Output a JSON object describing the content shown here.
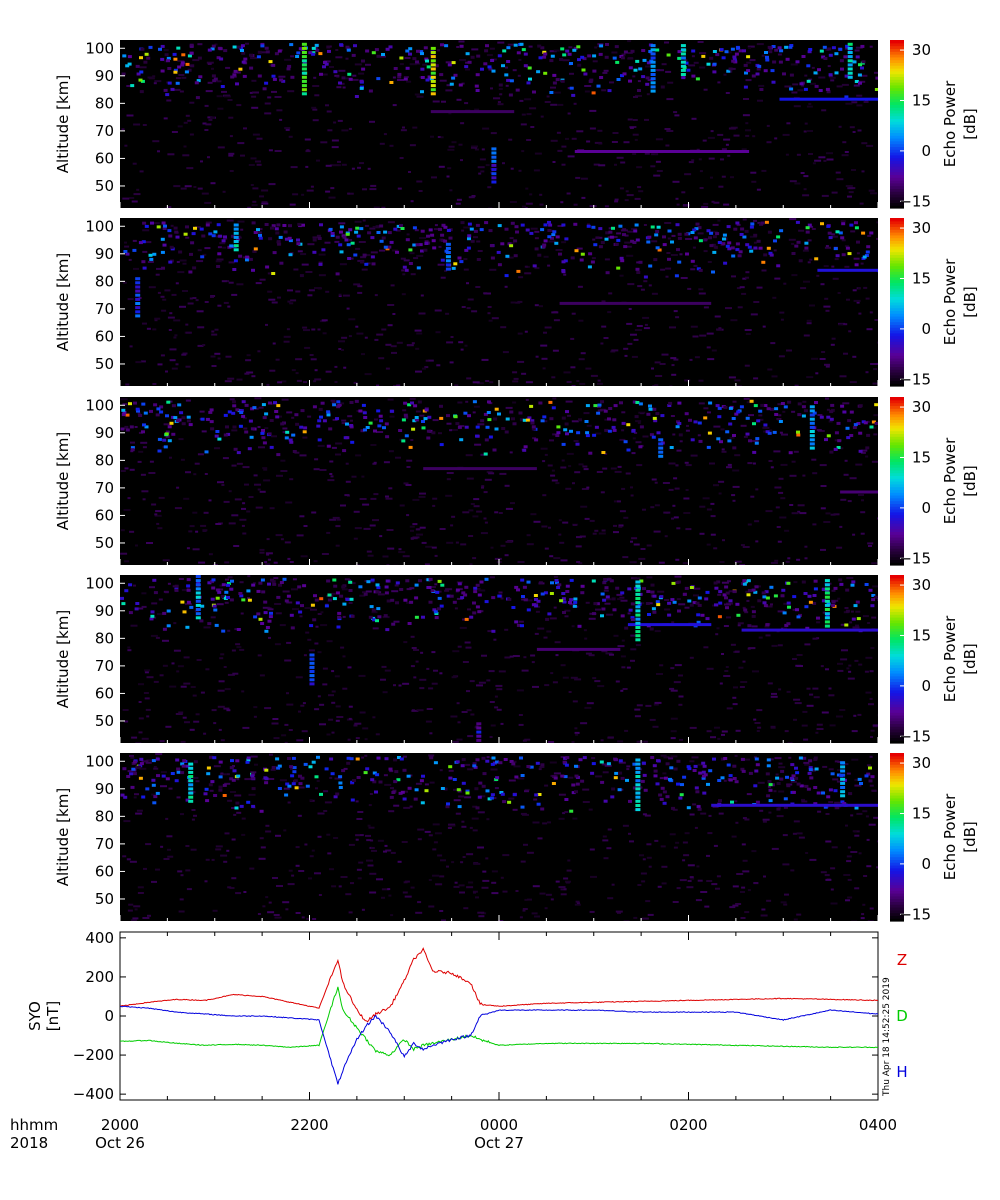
{
  "chart_data": [
    {
      "type": "heatmap",
      "panel": 1,
      "ylabel": "Altitude [km]",
      "ylim": [
        42,
        103
      ],
      "yticks": [
        50,
        60,
        70,
        80,
        90,
        100
      ],
      "colorbar": {
        "label": "Echo Power [dB]",
        "ticks": [
          -15,
          0,
          15,
          30
        ],
        "range": [
          -17,
          33
        ]
      },
      "features": [
        {
          "t": 0.24,
          "alt": [
            84,
            102
          ],
          "db": 20
        },
        {
          "t": 0.41,
          "alt": [
            84,
            101
          ],
          "db": 26
        },
        {
          "t": 0.49,
          "alt": [
            52,
            64
          ],
          "db": 4
        },
        {
          "t": 0.7,
          "alt": [
            85,
            102
          ],
          "db": 8
        },
        {
          "t": 0.74,
          "alt": [
            91,
            102
          ],
          "db": 12
        },
        {
          "t": 0.96,
          "alt": [
            90,
            102
          ],
          "db": 15
        }
      ],
      "layers": [
        {
          "t": [
            0.6,
            0.83
          ],
          "alt": 62.5,
          "db": -8
        },
        {
          "t": [
            0.87,
            1.12
          ],
          "alt": 81.5,
          "db": -2
        },
        {
          "t": [
            0.41,
            0.52
          ],
          "alt": 77,
          "db": -11
        }
      ]
    },
    {
      "type": "heatmap",
      "panel": 2,
      "ylabel": "Altitude [km]",
      "ylim": [
        42,
        103
      ],
      "yticks": [
        50,
        60,
        70,
        80,
        90,
        100
      ],
      "colorbar": {
        "label": "Echo Power [dB]",
        "ticks": [
          -15,
          0,
          15,
          30
        ],
        "range": [
          -17,
          33
        ]
      },
      "features": [
        {
          "t": 0.02,
          "alt": [
            68,
            82
          ],
          "db": 4
        },
        {
          "t": 0.15,
          "alt": [
            92,
            102
          ],
          "db": 14
        },
        {
          "t": 0.43,
          "alt": [
            85,
            95
          ],
          "db": 6
        }
      ],
      "layers": [
        {
          "t": [
            0.58,
            0.78
          ],
          "alt": 72,
          "db": -11
        },
        {
          "t": [
            0.92,
            1.02
          ],
          "alt": 84,
          "db": -3
        }
      ]
    },
    {
      "type": "heatmap",
      "panel": 3,
      "ylabel": "Altitude [km]",
      "ylim": [
        42,
        103
      ],
      "yticks": [
        50,
        60,
        70,
        80,
        90,
        100
      ],
      "colorbar": {
        "label": "Echo Power [dB]",
        "ticks": [
          -15,
          0,
          15,
          30
        ],
        "range": [
          -17,
          33
        ]
      },
      "features": [
        {
          "t": 0.71,
          "alt": [
            82,
            88
          ],
          "db": 8
        },
        {
          "t": 0.91,
          "alt": [
            85,
            100
          ],
          "db": 10
        }
      ],
      "layers": [
        {
          "t": [
            0.95,
            1.15
          ],
          "alt": 68.5,
          "db": -10
        },
        {
          "t": [
            0.4,
            0.55
          ],
          "alt": 77,
          "db": -11
        }
      ]
    },
    {
      "type": "heatmap",
      "panel": 4,
      "ylabel": "Altitude [km]",
      "ylim": [
        42,
        103
      ],
      "yticks": [
        50,
        60,
        70,
        80,
        90,
        100
      ],
      "colorbar": {
        "label": "Echo Power [dB]",
        "ticks": [
          -15,
          0,
          15,
          30
        ],
        "range": [
          -17,
          33
        ]
      },
      "features": [
        {
          "t": 0.1,
          "alt": [
            88,
            103
          ],
          "db": 10
        },
        {
          "t": 0.25,
          "alt": [
            64,
            75
          ],
          "db": 2
        },
        {
          "t": 0.47,
          "alt": [
            42,
            50
          ],
          "db": 0
        },
        {
          "t": 0.68,
          "alt": [
            80,
            101
          ],
          "db": 14
        },
        {
          "t": 0.93,
          "alt": [
            85,
            102
          ],
          "db": 16
        }
      ],
      "layers": [
        {
          "t": [
            0.67,
            0.78
          ],
          "alt": 85,
          "db": -3
        },
        {
          "t": [
            0.82,
            1.08
          ],
          "alt": 83,
          "db": -4
        },
        {
          "t": [
            0.55,
            0.66
          ],
          "alt": 76,
          "db": -10
        }
      ]
    },
    {
      "type": "heatmap",
      "panel": 5,
      "ylabel": "Altitude [km]",
      "ylim": [
        42,
        103
      ],
      "yticks": [
        50,
        60,
        70,
        80,
        90,
        100
      ],
      "colorbar": {
        "label": "Echo Power [dB]",
        "ticks": [
          -15,
          0,
          15,
          30
        ],
        "range": [
          -17,
          33
        ]
      },
      "features": [
        {
          "t": 0.09,
          "alt": [
            86,
            100
          ],
          "db": 14
        },
        {
          "t": 0.68,
          "alt": [
            83,
            101
          ],
          "db": 12
        },
        {
          "t": 0.95,
          "alt": [
            88,
            100
          ],
          "db": 10
        }
      ],
      "layers": [
        {
          "t": [
            0.78,
            1.1
          ],
          "alt": 84,
          "db": -4
        }
      ]
    },
    {
      "type": "line",
      "panel": 6,
      "ylabel": "SYO [nT]",
      "ylim": [
        -430,
        430
      ],
      "yticks": [
        -400,
        -200,
        0,
        200,
        400
      ],
      "x_hours": [
        0,
        8
      ],
      "series": [
        {
          "name": "Z",
          "color": "#dd0000",
          "x": [
            0,
            0.3,
            0.6,
            0.9,
            1.2,
            1.5,
            1.8,
            2.1,
            2.3,
            2.35,
            2.5,
            2.6,
            2.7,
            2.85,
            3,
            3.1,
            3.2,
            3.3,
            3.5,
            3.7,
            3.8,
            4.0,
            4.5,
            5,
            5.5,
            6,
            6.5,
            7,
            7.5,
            8
          ],
          "y": [
            50,
            70,
            85,
            80,
            110,
            100,
            70,
            40,
            290,
            170,
            30,
            -30,
            10,
            45,
            180,
            290,
            340,
            230,
            220,
            170,
            60,
            50,
            65,
            70,
            75,
            80,
            85,
            90,
            85,
            80
          ]
        },
        {
          "name": "D",
          "color": "#00cc00",
          "x": [
            0,
            0.3,
            0.6,
            0.9,
            1.2,
            1.5,
            1.8,
            2.1,
            2.3,
            2.35,
            2.5,
            2.6,
            2.7,
            2.85,
            3,
            3.1,
            3.2,
            3.3,
            3.5,
            3.7,
            3.8,
            4.0,
            4.5,
            5,
            5.5,
            6,
            6.5,
            7,
            7.5,
            8
          ],
          "y": [
            -130,
            -125,
            -140,
            -150,
            -145,
            -150,
            -160,
            -150,
            150,
            30,
            -60,
            -120,
            -180,
            -200,
            -120,
            -170,
            -150,
            -140,
            -120,
            -100,
            -120,
            -150,
            -140,
            -140,
            -140,
            -145,
            -150,
            -155,
            -160,
            -160
          ]
        },
        {
          "name": "H",
          "color": "#0000dd",
          "x": [
            0,
            0.3,
            0.6,
            0.9,
            1.2,
            1.5,
            1.8,
            2.1,
            2.3,
            2.35,
            2.5,
            2.6,
            2.7,
            2.85,
            3,
            3.1,
            3.2,
            3.3,
            3.5,
            3.7,
            3.8,
            4.0,
            4.5,
            5,
            5.5,
            6,
            6.5,
            7,
            7.5,
            8
          ],
          "y": [
            50,
            40,
            20,
            10,
            0,
            0,
            -10,
            -20,
            -350,
            -280,
            -120,
            -50,
            0,
            -80,
            -210,
            -140,
            -170,
            -150,
            -120,
            -100,
            0,
            30,
            30,
            30,
            20,
            20,
            20,
            -20,
            30,
            10
          ]
        }
      ],
      "timestamp": "Thu Apr 18 14:52:25 2019"
    }
  ],
  "time_axis": {
    "row_label": "hhmm",
    "year_label": "2018",
    "ticks": [
      {
        "hour": 0,
        "label": "2000",
        "date": "Oct 26"
      },
      {
        "hour": 2,
        "label": "2200",
        "date": ""
      },
      {
        "hour": 4,
        "label": "0000",
        "date": "Oct 27"
      },
      {
        "hour": 6,
        "label": "0200",
        "date": ""
      },
      {
        "hour": 8,
        "label": "0400",
        "date": ""
      }
    ]
  }
}
